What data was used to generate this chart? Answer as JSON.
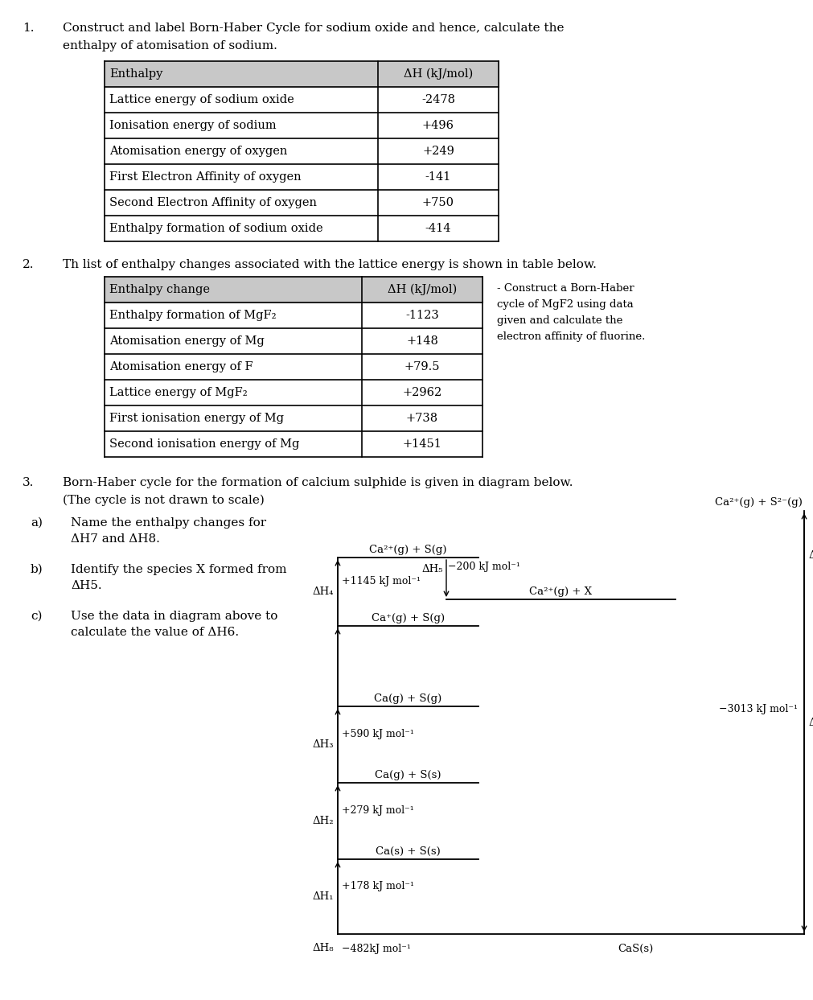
{
  "bg_color": "#ffffff",
  "table1_header": [
    "Enthalpy",
    "ΔH (kJ/mol)"
  ],
  "table1_rows": [
    [
      "Lattice energy of sodium oxide",
      "-2478"
    ],
    [
      "Ionisation energy of sodium",
      "+496"
    ],
    [
      "Atomisation energy of oxygen",
      "+249"
    ],
    [
      "First Electron Affinity of oxygen",
      "-141"
    ],
    [
      "Second Electron Affinity of oxygen",
      "+750"
    ],
    [
      "Enthalpy formation of sodium oxide",
      "-414"
    ]
  ],
  "table2_header": [
    "Enthalpy change",
    "ΔH (kJ/mol)"
  ],
  "table2_rows": [
    [
      "Enthalpy formation of MgF₂",
      "-1123"
    ],
    [
      "Atomisation energy of Mg",
      "+148"
    ],
    [
      "Atomisation energy of F",
      "+79.5"
    ],
    [
      "Lattice energy of MgF₂",
      "+2962"
    ],
    [
      "First ionisation energy of Mg",
      "+738"
    ],
    [
      "Second ionisation energy of Mg",
      "+1451"
    ]
  ],
  "q2_side_text": "- Construct a Born-Haber\ncycle of MgF2 using data\ngiven and calculate the\nelectron affinity of fluorine.",
  "header_bg": "#c8c8c8",
  "font_size_main": 11,
  "font_size_table": 10.5,
  "font_size_diag": 9.5,
  "font_size_diag_small": 9
}
